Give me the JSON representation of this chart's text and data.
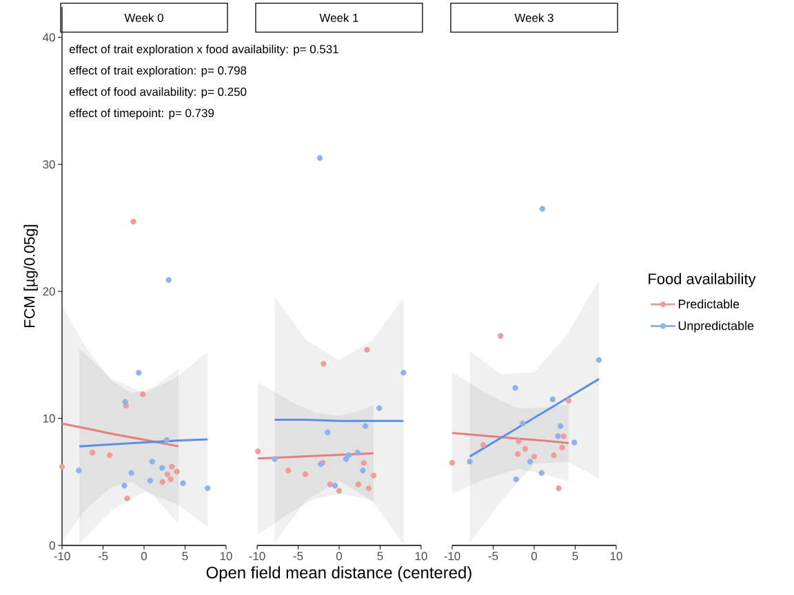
{
  "chart_data": [
    {
      "type": "scatter",
      "title": "Week 0",
      "ylabel": "FCM [µg/0.05g]",
      "xlim": [
        -10,
        10
      ],
      "ylim": [
        0,
        42.4
      ],
      "xticks": [
        -10,
        -5,
        0,
        5,
        10
      ],
      "yticks": [
        0,
        10,
        20,
        30,
        40
      ],
      "marker": "circle",
      "annotations": [
        "effect of trait exploration x food availability: p= 0.531",
        "effect of trait exploration: p= 0.798",
        "effect of food availability: p= 0.250",
        "effect of timepoint: p= 0.739"
      ],
      "series": [
        {
          "color": "#ef9d9a",
          "x": [
            -10,
            -6.3,
            -4.2,
            -1.3,
            -2.2,
            -0.15,
            -2.05,
            3.4,
            2.85,
            3.25,
            4.0,
            2.25
          ],
          "values": [
            6.2,
            7.3,
            7.1,
            25.5,
            11.0,
            11.9,
            3.7,
            6.2,
            5.6,
            5.2,
            5.8,
            5.0
          ]
        },
        {
          "color": "#8fb1ee",
          "x": [
            -7.95,
            -2.3,
            -0.65,
            3.0,
            -1.55,
            -2.4,
            0.75,
            1.0,
            2.2,
            2.75,
            4.75,
            7.75
          ],
          "values": [
            5.9,
            11.3,
            13.6,
            20.9,
            5.7,
            4.7,
            5.1,
            6.6,
            6.1,
            8.3,
            4.9,
            4.5
          ]
        },
        {
          "type": "line",
          "marker": "none",
          "color": "#e57f7b",
          "x": [
            -10,
            -7,
            -4,
            -1.5,
            1,
            4.2
          ],
          "values": [
            9.6,
            9.2,
            8.8,
            8.5,
            8.2,
            7.8
          ],
          "lower": [
            0.3,
            2.9,
            4.6,
            5.0,
            4.0,
            1.7
          ],
          "upper": [
            18.9,
            15.5,
            13.0,
            12.0,
            12.4,
            13.9
          ]
        },
        {
          "type": "line",
          "marker": "none",
          "color": "#5b8fe6",
          "x": [
            -7.9,
            -4,
            0,
            4,
            7.75
          ],
          "values": [
            7.8,
            7.95,
            8.1,
            8.25,
            8.35
          ],
          "lower": [
            0.1,
            2.75,
            4.2,
            3.25,
            1.45
          ],
          "upper": [
            15.5,
            13.15,
            12.0,
            13.25,
            15.25
          ]
        }
      ]
    },
    {
      "type": "scatter",
      "title": "Week 1",
      "xlabel": "Open field mean distance (centered)",
      "xlim": [
        -10,
        10
      ],
      "ylim": [
        0,
        40
      ],
      "yticks": [
        0,
        10,
        20,
        30,
        40
      ],
      "xticks": [
        -10,
        -5,
        0,
        5,
        10
      ],
      "tick_labels": "x",
      "marker": "circle",
      "series": [
        {
          "color": "#ef9d9a",
          "x": [
            -9.9,
            -6.2,
            -4.1,
            -1.9,
            -2.0,
            -1.1,
            0.0,
            3.4,
            3.0,
            2.35,
            3.6,
            4.2
          ],
          "values": [
            7.4,
            5.9,
            5.6,
            14.3,
            6.5,
            4.8,
            4.3,
            15.4,
            6.5,
            4.8,
            4.5,
            5.5
          ]
        },
        {
          "color": "#8fb1ee",
          "x": [
            -7.85,
            -1.4,
            -2.25,
            -0.5,
            0.85,
            1.15,
            2.25,
            2.9,
            3.2,
            4.9,
            7.85,
            -2.35
          ],
          "values": [
            6.8,
            8.9,
            6.4,
            4.7,
            6.8,
            7.1,
            7.3,
            5.9,
            9.4,
            10.8,
            13.6,
            30.5
          ]
        },
        {
          "type": "line",
          "marker": "none",
          "color": "#e57f7b",
          "x": [
            -9.9,
            -6,
            -3,
            0,
            2,
            4.2
          ],
          "values": [
            6.85,
            6.96,
            7.05,
            7.13,
            7.19,
            7.25
          ],
          "lower": [
            0.85,
            2.56,
            3.65,
            4.03,
            3.89,
            3.45
          ],
          "upper": [
            12.85,
            11.36,
            10.45,
            10.23,
            10.49,
            11.05
          ]
        },
        {
          "type": "line",
          "marker": "none",
          "color": "#5b8fe6",
          "x": [
            -7.85,
            -4,
            0,
            4,
            7.85
          ],
          "values": [
            9.9,
            9.9,
            9.8,
            9.8,
            9.8
          ],
          "lower": [
            0.2,
            3.575,
            5.1,
            3.525,
            0.1
          ],
          "upper": [
            19.6,
            16.175,
            14.6,
            16.125,
            19.5
          ]
        }
      ]
    },
    {
      "type": "scatter",
      "title": "Week 3",
      "xlim": [
        -10,
        10
      ],
      "ylim": [
        0,
        40
      ],
      "yticks": [
        0,
        10,
        20,
        30,
        40
      ],
      "xticks": [
        -10,
        -5,
        0,
        5,
        10
      ],
      "tick_labels": "x",
      "marker": "circle",
      "legend": "right",
      "legend_title": "Food availability",
      "series": [
        {
          "name": "Predictable",
          "color": "#ef9d9a",
          "x": [
            -10,
            -4.1,
            -6.2,
            -1.9,
            -2.0,
            -1.1,
            0.0,
            2.4,
            3.4,
            3.6,
            4.2,
            3.0
          ],
          "values": [
            6.5,
            16.5,
            7.9,
            8.2,
            7.2,
            7.6,
            7.0,
            7.1,
            7.7,
            8.6,
            11.4,
            4.5
          ]
        },
        {
          "name": "Unpredictable",
          "color": "#8fb1ee",
          "x": [
            -7.85,
            -2.3,
            -2.2,
            -1.4,
            -0.5,
            0.9,
            2.25,
            3.2,
            2.9,
            4.9,
            7.9,
            1.0
          ],
          "values": [
            6.6,
            12.4,
            5.2,
            9.6,
            6.6,
            5.7,
            11.5,
            9.4,
            8.6,
            8.1,
            14.6,
            26.5
          ]
        },
        {
          "type": "line",
          "marker": "none",
          "color": "#e57f7b",
          "x": [
            -10,
            -6,
            -2,
            1,
            4.2
          ],
          "values": [
            8.85,
            8.63,
            8.41,
            8.25,
            8.07
          ],
          "lower": [
            4.05,
            5.23,
            6.01,
            5.65,
            5.02
          ],
          "upper": [
            13.65,
            12.03,
            10.81,
            10.85,
            11.12
          ]
        },
        {
          "type": "line",
          "marker": "none",
          "color": "#5b8fe6",
          "x": [
            -7.85,
            -4,
            0,
            4,
            7.9
          ],
          "values": [
            7.0,
            8.49,
            10.04,
            11.59,
            13.1
          ],
          "lower": [
            0.2,
            3.49,
            6.44,
            6.59,
            5.3
          ],
          "upper": [
            15.3,
            13.49,
            13.64,
            16.59,
            20.9
          ]
        }
      ]
    }
  ]
}
